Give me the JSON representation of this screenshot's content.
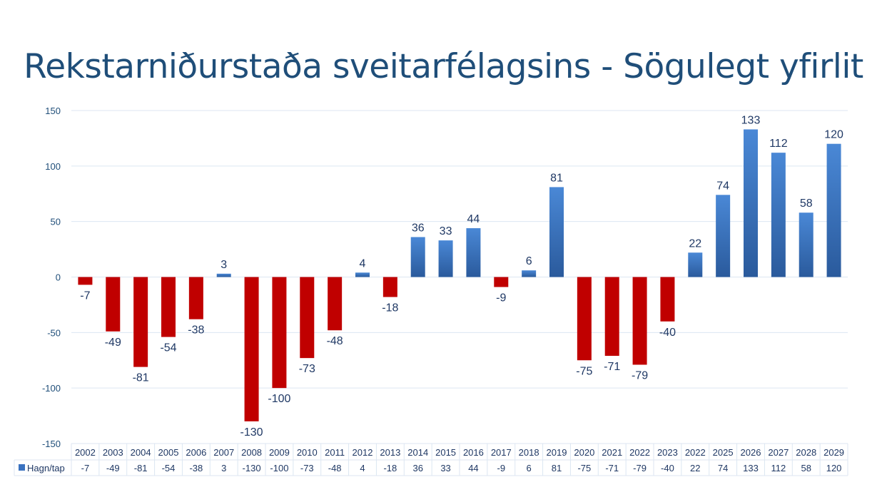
{
  "chart_data": {
    "type": "bar",
    "title": "Rekstarniðurstaða sveitarfélagsins - Sögulegt yfirlit",
    "series_name": "Hagn/tap",
    "categories": [
      "2002",
      "2003",
      "2004",
      "2005",
      "2006",
      "2007",
      "2008",
      "2009",
      "2010",
      "2011",
      "2012",
      "2013",
      "2014",
      "2015",
      "2016",
      "2017",
      "2018",
      "2019",
      "2020",
      "2021",
      "2022",
      "2023",
      "2022",
      "2025",
      "2026",
      "2027",
      "2028",
      "2029"
    ],
    "values": [
      -7,
      -49,
      -81,
      -54,
      -38,
      3,
      -130,
      -100,
      -73,
      -48,
      4,
      -18,
      36,
      33,
      44,
      -9,
      6,
      81,
      -75,
      -71,
      -79,
      -40,
      22,
      74,
      133,
      112,
      58,
      120
    ],
    "ylim": [
      -150,
      150
    ],
    "yticks": [
      150,
      100,
      50,
      0,
      -50,
      -100,
      -150
    ],
    "grid": true,
    "data_table": true,
    "colors": {
      "positive": "#3a72c0",
      "negative": "#c00000",
      "label": "#1f3864",
      "axis": "#1f4e79"
    }
  }
}
